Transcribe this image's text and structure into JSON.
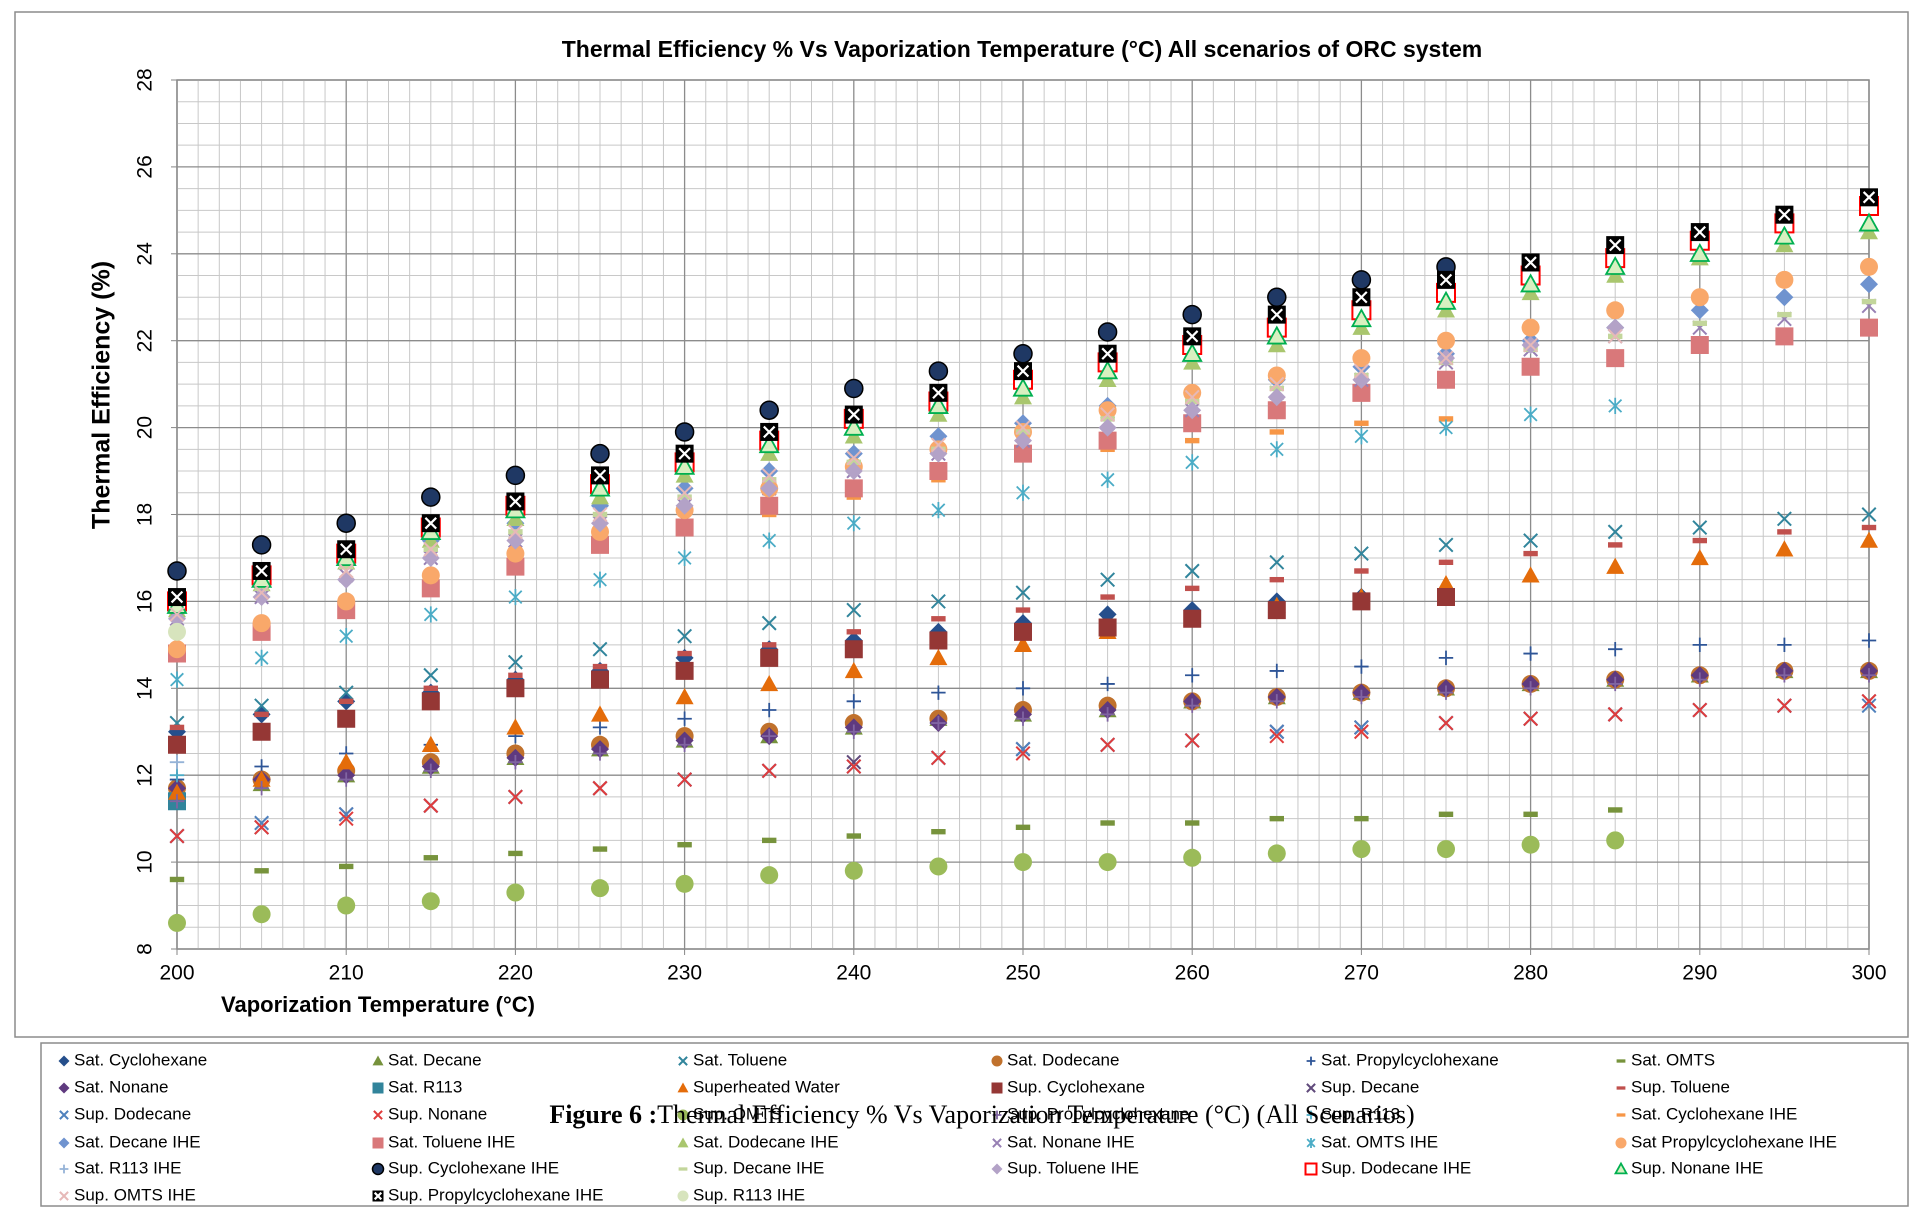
{
  "chart_data": {
    "type": "scatter",
    "title": "Thermal Efficiency % Vs Vaporization Temperature (°C)  All scenarios of ORC system",
    "x_label": "Vaporization Temperature (°C)",
    "y_label": "Thermal Efficiency (%)",
    "caption_label": "Figure 6 :",
    "caption": "Thermal Efficiency % Vs Vaporization Temperature (°C) (All Scenarios)",
    "xlim": [
      200,
      300
    ],
    "xticks": [
      200,
      210,
      220,
      230,
      240,
      250,
      260,
      270,
      280,
      290,
      300
    ],
    "ylim": [
      8,
      28
    ],
    "yticks": [
      8,
      10,
      12,
      14,
      16,
      18,
      20,
      22,
      24,
      26,
      28
    ],
    "grid": true,
    "legend": "bottom",
    "x": [
      200,
      205,
      210,
      215,
      220,
      225,
      230,
      235,
      240,
      245,
      250,
      255,
      260,
      265,
      270,
      275,
      280,
      285,
      290,
      295,
      300
    ],
    "series": [
      {
        "name": "Sat. Cyclohexane",
        "color": "#254f8c",
        "marker": "diamond",
        "values": [
          13.0,
          13.4,
          13.7,
          13.9,
          14.2,
          14.4,
          14.7,
          14.9,
          15.1,
          15.3,
          15.5,
          15.7,
          15.8,
          16.0,
          16.1,
          null,
          null,
          null,
          null,
          null,
          null
        ]
      },
      {
        "name": "Sat. Decane",
        "color": "#76923c",
        "marker": "triangle",
        "values": [
          11.6,
          11.8,
          12.0,
          12.2,
          12.4,
          12.6,
          12.8,
          12.9,
          13.1,
          13.3,
          13.4,
          13.5,
          13.7,
          13.8,
          13.9,
          14.0,
          14.1,
          14.2,
          14.3,
          14.4,
          14.4
        ]
      },
      {
        "name": "Sat. Toluene",
        "color": "#31859c",
        "marker": "x",
        "values": [
          13.2,
          13.6,
          13.9,
          14.3,
          14.6,
          14.9,
          15.2,
          15.5,
          15.8,
          16.0,
          16.2,
          16.5,
          16.7,
          16.9,
          17.1,
          17.3,
          17.4,
          17.6,
          17.7,
          17.9,
          18.0
        ]
      },
      {
        "name": "Sat. Dodecane",
        "color": "#c0712c",
        "marker": "circle",
        "values": [
          11.7,
          11.9,
          12.1,
          12.3,
          12.5,
          12.7,
          12.9,
          13.0,
          13.2,
          13.3,
          13.5,
          13.6,
          13.7,
          13.8,
          13.9,
          14.0,
          14.1,
          14.2,
          14.3,
          14.4,
          14.4
        ]
      },
      {
        "name": "Sat. Propylcyclohexane",
        "color": "#2e5597",
        "marker": "plus",
        "values": [
          11.9,
          12.2,
          12.5,
          12.7,
          12.9,
          13.1,
          13.3,
          13.5,
          13.7,
          13.9,
          14.0,
          14.1,
          14.3,
          14.4,
          14.5,
          14.7,
          14.8,
          14.9,
          15.0,
          15.0,
          15.1
        ]
      },
      {
        "name": "Sat. OMTS",
        "color": "#77933c",
        "marker": "dash",
        "values": [
          9.6,
          9.8,
          9.9,
          10.1,
          10.2,
          10.3,
          10.4,
          10.5,
          10.6,
          10.7,
          10.8,
          10.9,
          10.9,
          11.0,
          11.0,
          11.1,
          11.1,
          11.2,
          null,
          null,
          null
        ]
      },
      {
        "name": "Sat. Nonane",
        "color": "#5f3a7f",
        "marker": "diamond",
        "values": [
          11.7,
          11.9,
          12.0,
          12.2,
          12.4,
          12.6,
          12.8,
          12.9,
          13.1,
          13.2,
          13.4,
          13.5,
          13.7,
          13.8,
          13.9,
          14.0,
          14.1,
          14.2,
          14.3,
          14.4,
          14.4
        ]
      },
      {
        "name": "Sat. R113",
        "color": "#31849b",
        "marker": "square",
        "values": [
          11.4,
          null,
          null,
          null,
          null,
          null,
          null,
          null,
          null,
          null,
          null,
          null,
          null,
          null,
          null,
          null,
          null,
          null,
          null,
          null,
          null
        ]
      },
      {
        "name": "Superheated Water",
        "color": "#e46c0a",
        "marker": "triangle",
        "values": [
          11.6,
          11.9,
          12.3,
          12.7,
          13.1,
          13.4,
          13.8,
          14.1,
          14.4,
          14.7,
          15.0,
          15.3,
          15.6,
          15.9,
          16.1,
          16.4,
          16.6,
          16.8,
          17.0,
          17.2,
          17.4
        ]
      },
      {
        "name": "Sup. Cyclohexane",
        "color": "#953735",
        "marker": "square",
        "values": [
          12.7,
          13.0,
          13.3,
          13.7,
          14.0,
          14.2,
          14.4,
          14.7,
          14.9,
          15.1,
          15.3,
          15.4,
          15.6,
          15.8,
          16.0,
          16.1,
          null,
          null,
          null,
          null,
          null
        ]
      },
      {
        "name": "Sup. Decane",
        "color": "#604a7b",
        "marker": "x",
        "values": [
          10.6,
          10.8,
          11.1,
          11.3,
          11.5,
          11.7,
          11.9,
          12.1,
          12.3,
          12.4,
          12.6,
          12.7,
          12.8,
          13.0,
          13.1,
          13.2,
          13.3,
          13.4,
          13.5,
          13.6,
          13.7
        ]
      },
      {
        "name": "Sup. Toluene",
        "color": "#c0504d",
        "marker": "dash",
        "values": [
          13.1,
          13.4,
          13.7,
          14.0,
          14.3,
          14.5,
          14.8,
          15.0,
          15.3,
          15.6,
          15.8,
          16.1,
          16.3,
          16.5,
          16.7,
          16.9,
          17.1,
          17.3,
          17.4,
          17.6,
          17.7
        ]
      },
      {
        "name": "Sup. Dodecane",
        "color": "#4f81bd",
        "marker": "x",
        "values": [
          10.6,
          10.9,
          11.1,
          11.3,
          11.5,
          11.7,
          11.9,
          12.1,
          12.2,
          12.4,
          12.6,
          12.7,
          12.8,
          13.0,
          13.1,
          13.2,
          13.3,
          13.4,
          13.5,
          13.6,
          13.6
        ]
      },
      {
        "name": "Sup. Nonane",
        "color": "#e03c3c",
        "marker": "x",
        "values": [
          10.6,
          10.8,
          11.0,
          11.3,
          11.5,
          11.7,
          11.9,
          12.1,
          12.2,
          12.4,
          12.5,
          12.7,
          12.8,
          12.9,
          13.0,
          13.2,
          13.3,
          13.4,
          13.5,
          13.6,
          13.7
        ]
      },
      {
        "name": "Sup. OMTS",
        "color": "#9bbb59",
        "marker": "circle",
        "values": [
          8.6,
          8.8,
          9.0,
          9.1,
          9.3,
          9.4,
          9.5,
          9.7,
          9.8,
          9.9,
          10.0,
          10.0,
          10.1,
          10.2,
          10.3,
          10.3,
          10.4,
          10.5,
          null,
          null,
          null
        ]
      },
      {
        "name": "Sup. Propylcyclohexane",
        "color": "#8064a2",
        "marker": "plus",
        "values": [
          11.4,
          11.7,
          11.9,
          12.1,
          12.3,
          12.5,
          12.7,
          12.9,
          13.0,
          13.2,
          13.3,
          13.4,
          13.6,
          13.7,
          13.8,
          13.9,
          14.0,
          14.1,
          14.2,
          14.3,
          14.3
        ]
      },
      {
        "name": "Sup. R113",
        "color": "#4bacc6",
        "marker": "plus",
        "values": [
          12.0,
          null,
          null,
          null,
          null,
          null,
          null,
          null,
          null,
          null,
          null,
          null,
          null,
          null,
          null,
          null,
          null,
          null,
          null,
          null,
          null
        ]
      },
      {
        "name": "Sat. Cyclohexane IHE",
        "color": "#f79646",
        "marker": "dash",
        "values": [
          14.9,
          15.4,
          15.8,
          16.3,
          16.7,
          17.2,
          17.6,
          18.0,
          18.4,
          18.8,
          19.3,
          19.5,
          19.7,
          19.9,
          20.1,
          20.2,
          null,
          null,
          null,
          null,
          null
        ]
      },
      {
        "name": "Sat. Decane IHE",
        "color": "#6f93cf",
        "marker": "diamond",
        "values": [
          15.9,
          16.4,
          16.9,
          17.4,
          17.8,
          18.2,
          18.6,
          19.0,
          19.4,
          19.8,
          20.1,
          20.5,
          20.8,
          21.1,
          21.4,
          21.7,
          22.0,
          22.3,
          22.7,
          23.0,
          23.3
        ]
      },
      {
        "name": "Sat. Toluene IHE",
        "color": "#d9787a",
        "marker": "square",
        "values": [
          14.8,
          15.3,
          15.8,
          16.3,
          16.8,
          17.3,
          17.7,
          18.2,
          18.6,
          19.0,
          19.4,
          19.7,
          20.1,
          20.4,
          20.8,
          21.1,
          21.4,
          21.6,
          21.9,
          22.1,
          22.3
        ]
      },
      {
        "name": "Sat. Dodecane IHE",
        "color": "#a9c66e",
        "marker": "triangle",
        "values": [
          15.8,
          16.4,
          16.9,
          17.4,
          17.9,
          18.4,
          18.9,
          19.4,
          19.8,
          20.3,
          20.7,
          21.1,
          21.5,
          21.9,
          22.3,
          22.7,
          23.1,
          23.5,
          23.9,
          24.2,
          24.5
        ]
      },
      {
        "name": "Sat. Nonane IHE",
        "color": "#9780b4",
        "marker": "x",
        "values": [
          15.6,
          16.1,
          16.6,
          17.0,
          17.4,
          17.8,
          18.2,
          18.6,
          19.0,
          19.4,
          19.7,
          20.1,
          20.4,
          20.8,
          21.1,
          21.5,
          21.8,
          22.1,
          22.3,
          22.5,
          22.8
        ]
      },
      {
        "name": "Sat. OMTS IHE",
        "color": "#4bacc6",
        "marker": "star",
        "values": [
          14.2,
          14.7,
          15.2,
          15.7,
          16.1,
          16.5,
          17.0,
          17.4,
          17.8,
          18.1,
          18.5,
          18.8,
          19.2,
          19.5,
          19.8,
          20.0,
          20.3,
          20.5,
          null,
          null,
          null
        ]
      },
      {
        "name": "Sat Propylcyclohexane IHE",
        "color": "#f9a86a",
        "marker": "circle",
        "values": [
          14.9,
          15.5,
          16.0,
          16.6,
          17.1,
          17.6,
          18.1,
          18.6,
          19.1,
          19.5,
          19.9,
          20.4,
          20.8,
          21.2,
          21.6,
          22.0,
          22.3,
          22.7,
          23.0,
          23.4,
          23.7
        ]
      },
      {
        "name": "Sat. R113 IHE",
        "color": "#95b3d7",
        "marker": "plus",
        "values": [
          12.3,
          null,
          null,
          null,
          null,
          null,
          null,
          null,
          null,
          null,
          null,
          null,
          null,
          null,
          null,
          null,
          null,
          null,
          null,
          null,
          null
        ]
      },
      {
        "name": "Sup. Cyclohexane IHE",
        "color": "#1f3864",
        "marker": "circle-edged",
        "values": [
          16.7,
          17.3,
          17.8,
          18.4,
          18.9,
          19.4,
          19.9,
          20.4,
          20.9,
          21.3,
          21.7,
          22.2,
          22.6,
          23.0,
          23.4,
          23.7,
          null,
          null,
          null,
          null,
          null
        ]
      },
      {
        "name": "Sup. Decane IHE",
        "color": "#c3d69b",
        "marker": "dash",
        "values": [
          15.8,
          16.3,
          16.8,
          17.2,
          17.6,
          18.0,
          18.4,
          18.8,
          19.2,
          19.5,
          19.9,
          20.2,
          20.6,
          20.9,
          21.2,
          21.5,
          21.8,
          22.1,
          22.4,
          22.6,
          22.9
        ]
      },
      {
        "name": "Sup. Toluene IHE",
        "color": "#b3a2c7",
        "marker": "diamond",
        "values": [
          15.6,
          16.1,
          16.5,
          17.0,
          17.4,
          17.8,
          18.2,
          18.6,
          19.0,
          19.4,
          19.7,
          20.0,
          20.4,
          20.7,
          21.1,
          21.6,
          21.9,
          22.3,
          null,
          null,
          null
        ]
      },
      {
        "name": "Sup. Dodecane IHE",
        "color": "#ff0000",
        "marker": "square-open",
        "values": [
          16.0,
          16.6,
          17.1,
          17.7,
          18.2,
          18.7,
          19.2,
          19.7,
          20.2,
          20.6,
          21.1,
          21.5,
          21.9,
          22.3,
          22.7,
          23.1,
          23.5,
          23.9,
          24.3,
          24.7,
          25.1
        ]
      },
      {
        "name": "Sup. Nonane IHE",
        "color": "#00b050",
        "marker": "triangle-open",
        "values": [
          15.9,
          16.5,
          17.0,
          17.6,
          18.1,
          18.6,
          19.1,
          19.6,
          20.0,
          20.5,
          20.9,
          21.3,
          21.7,
          22.1,
          22.5,
          22.9,
          23.3,
          23.7,
          24.0,
          24.4,
          24.7
        ]
      },
      {
        "name": "Sup. OMTS IHE",
        "color": "#e6b9b8",
        "marker": "x",
        "values": [
          15.7,
          16.2,
          16.7,
          17.2,
          17.6,
          18.0,
          18.5,
          18.9,
          19.3,
          19.6,
          20.0,
          20.3,
          20.7,
          21.0,
          21.3,
          21.6,
          21.9,
          22.1,
          null,
          null,
          null
        ]
      },
      {
        "name": "Sup. Propylcyclohexane IHE",
        "color": "#000000",
        "marker": "square-x",
        "values": [
          16.1,
          16.7,
          17.2,
          17.8,
          18.3,
          18.9,
          19.4,
          19.9,
          20.3,
          20.8,
          21.3,
          21.7,
          22.1,
          22.6,
          23.0,
          23.4,
          23.8,
          24.2,
          24.5,
          24.9,
          25.3
        ]
      },
      {
        "name": "Sup. R113 IHE",
        "color": "#d7e4bd",
        "marker": "circle",
        "values": [
          15.3,
          null,
          null,
          null,
          null,
          null,
          null,
          null,
          null,
          null,
          null,
          null,
          null,
          null,
          null,
          null,
          null,
          null,
          null,
          null,
          null
        ]
      }
    ]
  }
}
